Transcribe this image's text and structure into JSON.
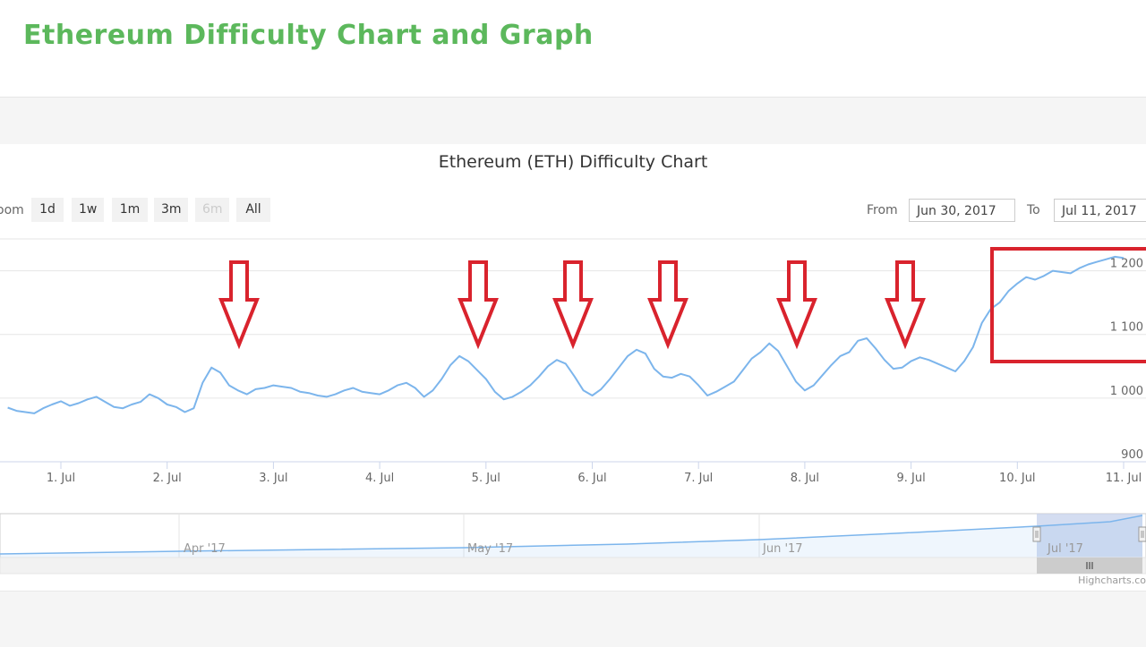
{
  "page": {
    "title": "Ethereum Difficulty Chart and Graph"
  },
  "chart": {
    "title": "Ethereum (ETH) Difficulty Chart",
    "zoom_label": "oom",
    "zoom_buttons": [
      {
        "label": "1d",
        "disabled": false
      },
      {
        "label": "1w",
        "disabled": false
      },
      {
        "label": "1m",
        "disabled": false
      },
      {
        "label": "3m",
        "disabled": false
      },
      {
        "label": "6m",
        "disabled": true
      },
      {
        "label": "All",
        "disabled": false
      }
    ],
    "range": {
      "from_label": "From",
      "from_value": "Jun 30, 2017",
      "to_label": "To",
      "to_value": "Jul 11, 2017"
    },
    "credits": "Highcharts.co",
    "colors": {
      "line": "#7cb5ec",
      "annotation": "#d9232d",
      "navigator_mask": "#c5d1ec"
    }
  },
  "chart_data": {
    "type": "line",
    "title": "Ethereum (ETH) Difficulty Chart",
    "xlabel": "",
    "ylabel": "",
    "x_ticks": [
      "1. Jul",
      "2. Jul",
      "3. Jul",
      "4. Jul",
      "5. Jul",
      "6. Jul",
      "7. Jul",
      "8. Jul",
      "9. Jul",
      "10. Jul",
      "11. Jul"
    ],
    "y_ticks": [
      "900",
      "1 000",
      "1 100",
      "1 200"
    ],
    "xlim": [
      "Jun 30, 2017",
      "Jul 11, 2017"
    ],
    "ylim": [
      900,
      1250
    ],
    "grid": true,
    "series": [
      {
        "x": [
          "2017-06-30 12:00",
          "2017-06-30 14:00",
          "2017-06-30 16:00",
          "2017-06-30 18:00",
          "2017-06-30 20:00",
          "2017-06-30 22:00",
          "2017-07-01 00:00",
          "2017-07-01 02:00",
          "2017-07-01 04:00",
          "2017-07-01 06:00",
          "2017-07-01 08:00",
          "2017-07-01 10:00",
          "2017-07-01 12:00",
          "2017-07-01 14:00",
          "2017-07-01 16:00",
          "2017-07-01 18:00",
          "2017-07-01 20:00",
          "2017-07-01 22:00",
          "2017-07-02 00:00",
          "2017-07-02 02:00",
          "2017-07-02 04:00",
          "2017-07-02 06:00",
          "2017-07-02 08:00",
          "2017-07-02 10:00",
          "2017-07-02 12:00",
          "2017-07-02 14:00",
          "2017-07-02 16:00",
          "2017-07-02 18:00",
          "2017-07-02 20:00",
          "2017-07-02 22:00",
          "2017-07-03 00:00",
          "2017-07-03 02:00",
          "2017-07-03 04:00",
          "2017-07-03 06:00",
          "2017-07-03 08:00",
          "2017-07-03 10:00",
          "2017-07-03 12:00",
          "2017-07-03 14:00",
          "2017-07-03 16:00",
          "2017-07-03 18:00",
          "2017-07-03 20:00",
          "2017-07-03 22:00",
          "2017-07-04 00:00",
          "2017-07-04 02:00",
          "2017-07-04 04:00",
          "2017-07-04 06:00",
          "2017-07-04 08:00",
          "2017-07-04 10:00",
          "2017-07-04 12:00",
          "2017-07-04 14:00",
          "2017-07-04 16:00",
          "2017-07-04 18:00",
          "2017-07-04 20:00",
          "2017-07-04 22:00",
          "2017-07-05 00:00",
          "2017-07-05 02:00",
          "2017-07-05 04:00",
          "2017-07-05 06:00",
          "2017-07-05 08:00",
          "2017-07-05 10:00",
          "2017-07-05 12:00",
          "2017-07-05 14:00",
          "2017-07-05 16:00",
          "2017-07-05 18:00",
          "2017-07-05 20:00",
          "2017-07-05 22:00",
          "2017-07-06 00:00",
          "2017-07-06 02:00",
          "2017-07-06 04:00",
          "2017-07-06 06:00",
          "2017-07-06 08:00",
          "2017-07-06 10:00",
          "2017-07-06 12:00",
          "2017-07-06 14:00",
          "2017-07-06 16:00",
          "2017-07-06 18:00",
          "2017-07-06 20:00",
          "2017-07-06 22:00",
          "2017-07-07 00:00",
          "2017-07-07 02:00",
          "2017-07-07 04:00",
          "2017-07-07 06:00",
          "2017-07-07 08:00",
          "2017-07-07 10:00",
          "2017-07-07 12:00",
          "2017-07-07 14:00",
          "2017-07-07 16:00",
          "2017-07-07 18:00",
          "2017-07-07 20:00",
          "2017-07-07 22:00",
          "2017-07-08 00:00",
          "2017-07-08 02:00",
          "2017-07-08 04:00",
          "2017-07-08 06:00",
          "2017-07-08 08:00",
          "2017-07-08 10:00",
          "2017-07-08 12:00",
          "2017-07-08 14:00",
          "2017-07-08 16:00",
          "2017-07-08 18:00",
          "2017-07-08 20:00",
          "2017-07-08 22:00",
          "2017-07-09 00:00",
          "2017-07-09 02:00",
          "2017-07-09 04:00",
          "2017-07-09 06:00",
          "2017-07-09 08:00",
          "2017-07-09 10:00",
          "2017-07-09 12:00",
          "2017-07-09 14:00",
          "2017-07-09 16:00",
          "2017-07-09 18:00",
          "2017-07-09 20:00",
          "2017-07-09 22:00",
          "2017-07-10 00:00",
          "2017-07-10 02:00",
          "2017-07-10 04:00",
          "2017-07-10 06:00",
          "2017-07-10 08:00",
          "2017-07-10 10:00",
          "2017-07-10 12:00",
          "2017-07-10 14:00",
          "2017-07-10 16:00",
          "2017-07-10 18:00",
          "2017-07-10 20:00",
          "2017-07-10 22:00",
          "2017-07-11 00:00"
        ],
        "values": [
          985,
          980,
          978,
          976,
          984,
          990,
          995,
          988,
          992,
          998,
          1002,
          994,
          986,
          984,
          990,
          994,
          1006,
          1000,
          990,
          986,
          978,
          984,
          1024,
          1048,
          1040,
          1020,
          1012,
          1006,
          1014,
          1016,
          1020,
          1018,
          1016,
          1010,
          1008,
          1004,
          1002,
          1006,
          1012,
          1016,
          1010,
          1008,
          1006,
          1012,
          1020,
          1024,
          1016,
          1002,
          1012,
          1030,
          1052,
          1066,
          1058,
          1044,
          1030,
          1010,
          998,
          1002,
          1010,
          1020,
          1034,
          1050,
          1060,
          1054,
          1034,
          1012,
          1004,
          1014,
          1030,
          1048,
          1066,
          1076,
          1070,
          1046,
          1034,
          1032,
          1038,
          1034,
          1020,
          1004,
          1010,
          1018,
          1026,
          1044,
          1062,
          1072,
          1086,
          1074,
          1050,
          1026,
          1012,
          1020,
          1036,
          1052,
          1066,
          1072,
          1090,
          1094,
          1078,
          1060,
          1046,
          1048,
          1058,
          1064,
          1060,
          1054,
          1048,
          1042,
          1058,
          1080,
          1118,
          1140,
          1150,
          1168,
          1180,
          1190,
          1186,
          1192,
          1200,
          1198,
          1196,
          1204,
          1210,
          1214,
          1218,
          1222,
          1220
        ]
      }
    ],
    "navigator": {
      "x_ticks": [
        "Apr '17",
        "May '17",
        "Jun '17",
        "Jul '17"
      ],
      "selected_range": [
        "Jun 30, 2017",
        "Jul 11, 2017"
      ]
    }
  }
}
